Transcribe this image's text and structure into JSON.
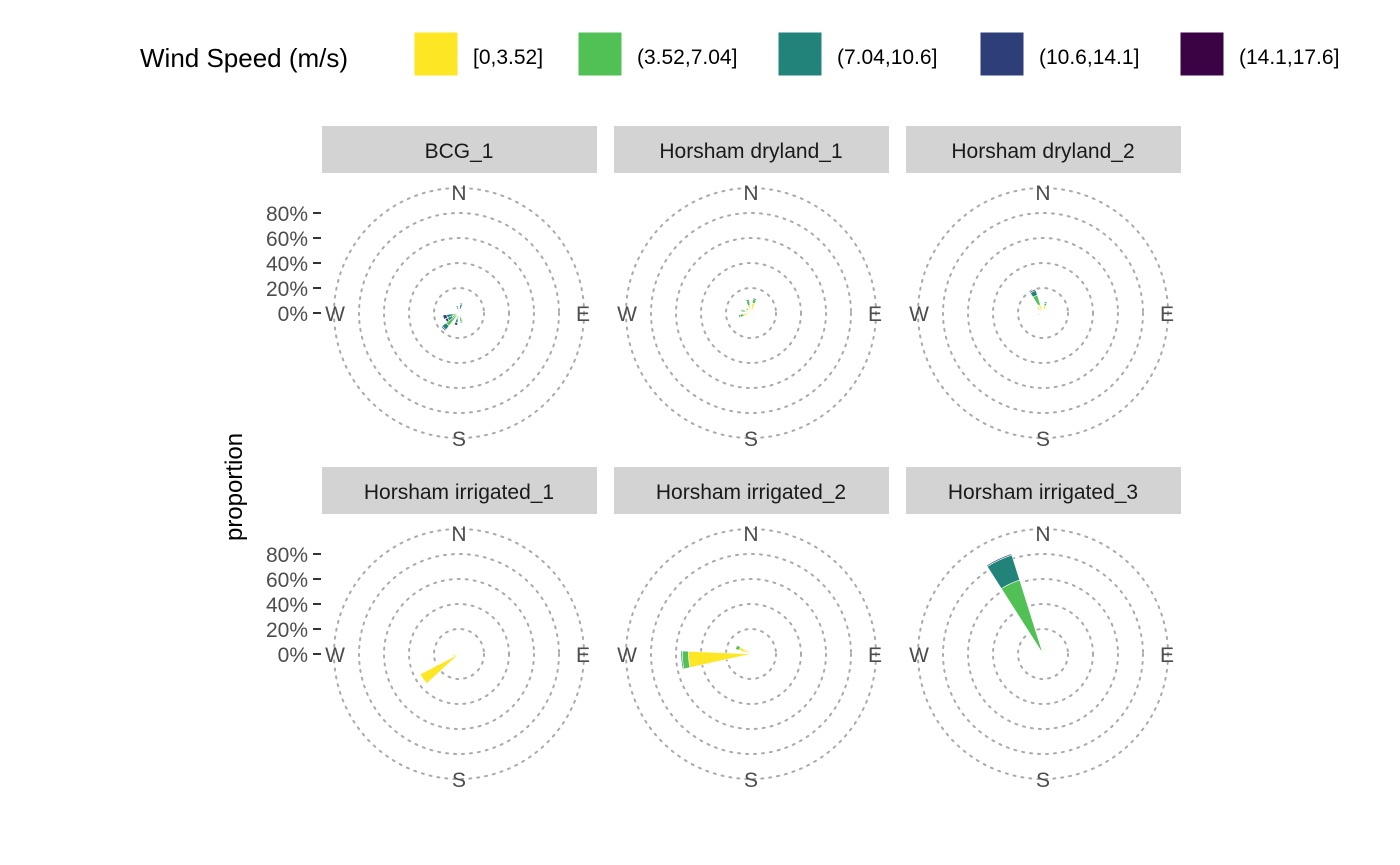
{
  "chart_data": {
    "type": "polar-bar",
    "ylabel": "proportion",
    "legend": {
      "title": "Wind Speed (m/s)",
      "placement": "top",
      "entries": [
        {
          "label": "[0,3.52]",
          "color": "#FDE725"
        },
        {
          "label": "(3.52,7.04]",
          "color": "#51C155"
        },
        {
          "label": "(7.04,10.6]",
          "color": "#21837A"
        },
        {
          "label": "(10.6,14.1]",
          "color": "#2D3E78"
        },
        {
          "label": "(14.1,17.6]",
          "color": "#3A0343"
        }
      ]
    },
    "radial_ticks": [
      "0%",
      "20%",
      "40%",
      "60%",
      "80%"
    ],
    "radial_max": 1.0,
    "compass_labels": {
      "N": "N",
      "E": "E",
      "S": "S",
      "W": "W"
    },
    "grid": "dotted circles",
    "panels": [
      {
        "title": "BCG_1",
        "sectors": [
          {
            "dir": 225,
            "values": [
              0.02,
              0.11,
              0.04,
              0.01,
              0
            ]
          },
          {
            "dir": 240,
            "values": [
              0.01,
              0.05,
              0.04,
              0.02,
              0
            ]
          },
          {
            "dir": 255,
            "values": [
              0.01,
              0.04,
              0.05,
              0.03,
              0
            ]
          },
          {
            "dir": 195,
            "values": [
              0.01,
              0.04,
              0.03,
              0.02,
              0
            ]
          },
          {
            "dir": 165,
            "values": [
              0.03,
              0.04,
              0.01,
              0,
              0
            ]
          },
          {
            "dir": 345,
            "values": [
              0.01,
              0.02,
              0.02,
              0.01,
              0
            ]
          },
          {
            "dir": 15,
            "values": [
              0.01,
              0.02,
              0.04,
              0.01,
              0
            ]
          },
          {
            "dir": 45,
            "values": [
              0.01,
              0.01,
              0.01,
              0,
              0
            ]
          },
          {
            "dir": 135,
            "values": [
              0.01,
              0.01,
              0.01,
              0,
              0
            ]
          },
          {
            "dir": 105,
            "values": [
              0.01,
              0.01,
              0,
              0,
              0
            ]
          }
        ]
      },
      {
        "title": "Horsham dryland_1",
        "sectors": [
          {
            "dir": 255,
            "values": [
              0.06,
              0.03,
              0.01,
              0,
              0
            ]
          },
          {
            "dir": 285,
            "values": [
              0.05,
              0.02,
              0.01,
              0,
              0
            ]
          },
          {
            "dir": 345,
            "values": [
              0.06,
              0.04,
              0.01,
              0,
              0
            ]
          },
          {
            "dir": 15,
            "values": [
              0.08,
              0.03,
              0.01,
              0,
              0
            ]
          },
          {
            "dir": 315,
            "values": [
              0.03,
              0.02,
              0,
              0,
              0
            ]
          },
          {
            "dir": 195,
            "values": [
              0.02,
              0.01,
              0,
              0,
              0
            ]
          },
          {
            "dir": 105,
            "values": [
              0.02,
              0.01,
              0,
              0,
              0
            ]
          },
          {
            "dir": 135,
            "values": [
              0.01,
              0.01,
              0,
              0,
              0
            ]
          }
        ]
      },
      {
        "title": "Horsham dryland_2",
        "sectors": [
          {
            "dir": 335,
            "values": [
              0.07,
              0.08,
              0.04,
              0.01,
              0
            ]
          },
          {
            "dir": 315,
            "values": [
              0.05,
              0.01,
              0,
              0,
              0
            ]
          },
          {
            "dir": 15,
            "values": [
              0.06,
              0.02,
              0.01,
              0,
              0
            ]
          },
          {
            "dir": 255,
            "values": [
              0.03,
              0.01,
              0,
              0,
              0
            ]
          },
          {
            "dir": 195,
            "values": [
              0.02,
              0.01,
              0,
              0,
              0
            ]
          },
          {
            "dir": 105,
            "values": [
              0.01,
              0.01,
              0,
              0,
              0
            ]
          },
          {
            "dir": 135,
            "values": [
              0.01,
              0,
              0,
              0,
              0
            ]
          }
        ]
      },
      {
        "title": "Horsham irrigated_1",
        "sectors": [
          {
            "dir": 235,
            "values": [
              0.35,
              0,
              0,
              0,
              0
            ]
          },
          {
            "dir": 345,
            "values": [
              0.03,
              0,
              0,
              0,
              0
            ]
          },
          {
            "dir": 255,
            "values": [
              0.05,
              0,
              0,
              0,
              0
            ]
          }
        ]
      },
      {
        "title": "Horsham irrigated_2",
        "sectors": [
          {
            "dir": 265,
            "values": [
              0.5,
              0.05,
              0.01,
              0,
              0
            ]
          },
          {
            "dir": 295,
            "values": [
              0.1,
              0.03,
              0,
              0,
              0
            ]
          },
          {
            "dir": 315,
            "values": [
              0.03,
              0.01,
              0,
              0,
              0
            ]
          },
          {
            "dir": 345,
            "values": [
              0.03,
              0,
              0,
              0,
              0
            ]
          }
        ]
      },
      {
        "title": "Horsham irrigated_3",
        "sectors": [
          {
            "dir": 335,
            "values": [
              0.03,
              0.59,
              0.21,
              0.01,
              0
            ]
          },
          {
            "dir": 15,
            "values": [
              0.03,
              0.01,
              0,
              0,
              0
            ]
          }
        ]
      }
    ]
  }
}
